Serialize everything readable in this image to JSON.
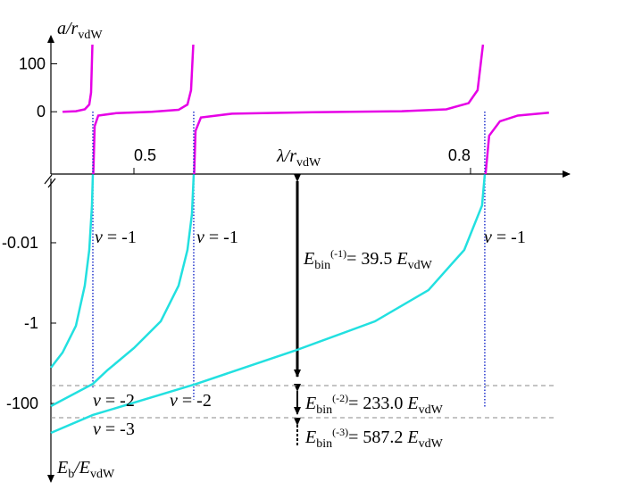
{
  "chart_data": [
    {
      "type": "line",
      "y_label": {
        "main": "a/r",
        "sub": "vdW"
      },
      "x_label": {
        "main": "λ/r",
        "sub": "vdW"
      },
      "xlim": [
        0.426,
        0.882
      ],
      "xticks": [
        0.5,
        0.8
      ],
      "ylim": [
        -130,
        140
      ],
      "yticks": [
        0,
        100
      ],
      "series": [
        {
          "color": "#e600e6",
          "x": [
            0.4364,
            0.4483,
            0.4562,
            0.4602,
            0.4618,
            0.463,
            null,
            0.4638,
            0.465,
            0.4682,
            0.4841,
            0.5159,
            0.5398,
            0.5477,
            0.5509,
            0.5529,
            null,
            0.5537,
            0.5549,
            0.5597,
            0.5875,
            0.6591,
            0.7387,
            0.7784,
            0.7983,
            0.8063,
            0.8111,
            null,
            0.8134,
            0.8166,
            0.8262,
            0.8421,
            0.8699
          ],
          "values": [
            0,
            1,
            5,
            15,
            40,
            140,
            null,
            -130,
            -30,
            -8,
            -3,
            0,
            4,
            15,
            45,
            140,
            null,
            -130,
            -40,
            -12,
            -4,
            -1,
            1,
            5,
            18,
            45,
            140,
            null,
            -130,
            -50,
            -20,
            -8,
            -2
          ]
        }
      ]
    },
    {
      "type": "line",
      "log_scale": true,
      "y_label": {
        "main": "E",
        "sub": "b",
        "rest": "/E",
        "sub2": "vdW"
      },
      "xlim": [
        0.426,
        0.882
      ],
      "ylim": [
        -0.0002,
        -5000
      ],
      "yticks": [
        -0.01,
        -1,
        -100
      ],
      "reference_lines": [
        -36,
        -227
      ],
      "series": [
        {
          "color": "#22e0e0",
          "x": [
            0.4634,
            0.4626,
            0.4602,
            0.4562,
            0.4483,
            0.4364,
            0.426
          ],
          "values": [
            -0.0002,
            -0.00117,
            -0.0151,
            -0.117,
            -1.17,
            -5.41,
            -12.9
          ]
        },
        {
          "color": "#22e0e0",
          "x": [
            0.5533,
            0.5517,
            0.5477,
            0.5398,
            0.5239,
            0.5,
            0.4761,
            0.4634,
            0.426
          ],
          "values": [
            -0.0002,
            -0.00195,
            -0.0151,
            -0.117,
            -0.904,
            -4.19,
            -15.1,
            -32.5,
            -116.7
          ]
        },
        {
          "color": "#22e0e0",
          "x": [
            0.8127,
            0.8103,
            0.7944,
            0.7625,
            0.7148,
            0.6432,
            0.5557,
            0.4634,
            0.426
          ],
          "values": [
            -0.0002,
            -0.00117,
            -0.0151,
            -0.151,
            -0.904,
            -4.88,
            -32.5,
            -194,
            -541
          ]
        }
      ],
      "level_labels": [
        {
          "var": "v",
          "rest": " = -1"
        },
        {
          "var": "v",
          "rest": " = -1"
        },
        {
          "var": "v",
          "rest": " = -1"
        },
        {
          "var": "v",
          "rest": " = -2"
        },
        {
          "var": "v",
          "rest": " = -2"
        },
        {
          "var": "v",
          "rest": " = -3"
        }
      ],
      "annotations": [
        {
          "symbol": "E",
          "sub": "bin",
          "sup": "(-1)",
          "text": "= 39.5 ",
          "unit": "E",
          "unit_sub": "vdW"
        },
        {
          "symbol": "E",
          "sub": "bin",
          "sup": "(-2)",
          "text": "= 233.0 ",
          "unit": "E",
          "unit_sub": "vdW"
        },
        {
          "symbol": "E",
          "sub": "bin",
          "sup": "(-3)",
          "text": "= 587.2 ",
          "unit": "E",
          "unit_sub": "vdW"
        }
      ]
    }
  ]
}
